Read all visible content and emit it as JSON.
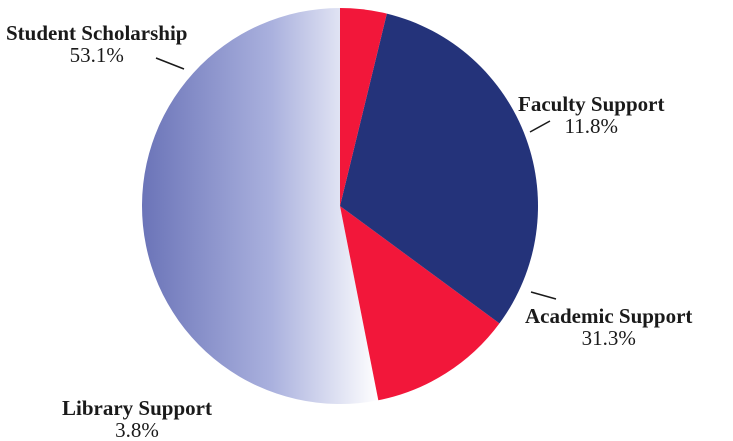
{
  "chart_data": {
    "type": "pie",
    "slices": [
      {
        "label": "Student Scholarship",
        "value": 53.1,
        "value_label": "53.1%",
        "color": "#8088c6"
      },
      {
        "label": "Faculty Support",
        "value": 11.8,
        "value_label": "11.8%",
        "color": "#f2173a"
      },
      {
        "label": "Academic Support",
        "value": 31.3,
        "value_label": "31.3%",
        "color": "#24337a"
      },
      {
        "label": "Library Support",
        "value": 3.8,
        "value_label": "3.8%",
        "color": "#f2173a"
      }
    ],
    "start_angle_deg": 90,
    "direction": "counterclockwise",
    "legend": "none"
  }
}
